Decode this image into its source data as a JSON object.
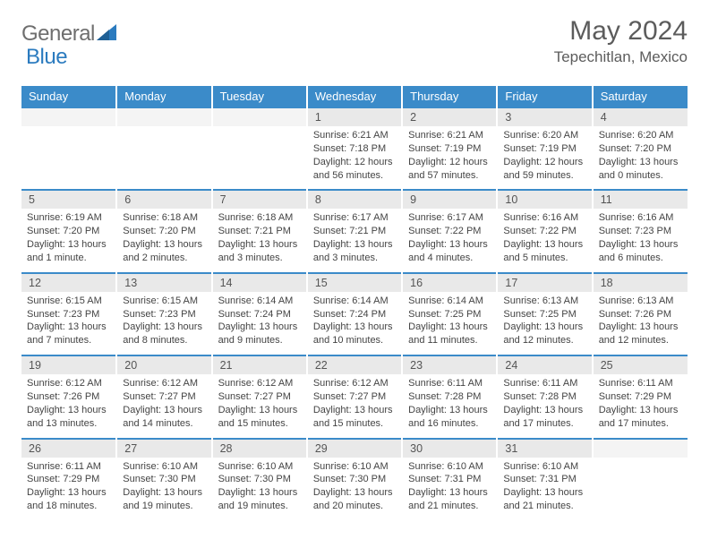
{
  "logo": {
    "text_left": "General",
    "text_right": "Blue"
  },
  "title": "May 2024",
  "subtitle": "Tepechitlan, Mexico",
  "colors": {
    "header_bg": "#3b8bc9",
    "header_text": "#ffffff",
    "daynum_bg": "#e9e9e9",
    "border": "#3b8bc9",
    "logo_gray": "#6e6e6e",
    "logo_blue": "#2b7bbf",
    "body_text": "#444444",
    "title_text": "#5c5c5c"
  },
  "dayNames": [
    "Sunday",
    "Monday",
    "Tuesday",
    "Wednesday",
    "Thursday",
    "Friday",
    "Saturday"
  ],
  "weeks": [
    [
      null,
      null,
      null,
      {
        "n": "1",
        "sr": "6:21 AM",
        "ss": "7:18 PM",
        "dl": "12 hours and 56 minutes."
      },
      {
        "n": "2",
        "sr": "6:21 AM",
        "ss": "7:19 PM",
        "dl": "12 hours and 57 minutes."
      },
      {
        "n": "3",
        "sr": "6:20 AM",
        "ss": "7:19 PM",
        "dl": "12 hours and 59 minutes."
      },
      {
        "n": "4",
        "sr": "6:20 AM",
        "ss": "7:20 PM",
        "dl": "13 hours and 0 minutes."
      }
    ],
    [
      {
        "n": "5",
        "sr": "6:19 AM",
        "ss": "7:20 PM",
        "dl": "13 hours and 1 minute."
      },
      {
        "n": "6",
        "sr": "6:18 AM",
        "ss": "7:20 PM",
        "dl": "13 hours and 2 minutes."
      },
      {
        "n": "7",
        "sr": "6:18 AM",
        "ss": "7:21 PM",
        "dl": "13 hours and 3 minutes."
      },
      {
        "n": "8",
        "sr": "6:17 AM",
        "ss": "7:21 PM",
        "dl": "13 hours and 3 minutes."
      },
      {
        "n": "9",
        "sr": "6:17 AM",
        "ss": "7:22 PM",
        "dl": "13 hours and 4 minutes."
      },
      {
        "n": "10",
        "sr": "6:16 AM",
        "ss": "7:22 PM",
        "dl": "13 hours and 5 minutes."
      },
      {
        "n": "11",
        "sr": "6:16 AM",
        "ss": "7:23 PM",
        "dl": "13 hours and 6 minutes."
      }
    ],
    [
      {
        "n": "12",
        "sr": "6:15 AM",
        "ss": "7:23 PM",
        "dl": "13 hours and 7 minutes."
      },
      {
        "n": "13",
        "sr": "6:15 AM",
        "ss": "7:23 PM",
        "dl": "13 hours and 8 minutes."
      },
      {
        "n": "14",
        "sr": "6:14 AM",
        "ss": "7:24 PM",
        "dl": "13 hours and 9 minutes."
      },
      {
        "n": "15",
        "sr": "6:14 AM",
        "ss": "7:24 PM",
        "dl": "13 hours and 10 minutes."
      },
      {
        "n": "16",
        "sr": "6:14 AM",
        "ss": "7:25 PM",
        "dl": "13 hours and 11 minutes."
      },
      {
        "n": "17",
        "sr": "6:13 AM",
        "ss": "7:25 PM",
        "dl": "13 hours and 12 minutes."
      },
      {
        "n": "18",
        "sr": "6:13 AM",
        "ss": "7:26 PM",
        "dl": "13 hours and 12 minutes."
      }
    ],
    [
      {
        "n": "19",
        "sr": "6:12 AM",
        "ss": "7:26 PM",
        "dl": "13 hours and 13 minutes."
      },
      {
        "n": "20",
        "sr": "6:12 AM",
        "ss": "7:27 PM",
        "dl": "13 hours and 14 minutes."
      },
      {
        "n": "21",
        "sr": "6:12 AM",
        "ss": "7:27 PM",
        "dl": "13 hours and 15 minutes."
      },
      {
        "n": "22",
        "sr": "6:12 AM",
        "ss": "7:27 PM",
        "dl": "13 hours and 15 minutes."
      },
      {
        "n": "23",
        "sr": "6:11 AM",
        "ss": "7:28 PM",
        "dl": "13 hours and 16 minutes."
      },
      {
        "n": "24",
        "sr": "6:11 AM",
        "ss": "7:28 PM",
        "dl": "13 hours and 17 minutes."
      },
      {
        "n": "25",
        "sr": "6:11 AM",
        "ss": "7:29 PM",
        "dl": "13 hours and 17 minutes."
      }
    ],
    [
      {
        "n": "26",
        "sr": "6:11 AM",
        "ss": "7:29 PM",
        "dl": "13 hours and 18 minutes."
      },
      {
        "n": "27",
        "sr": "6:10 AM",
        "ss": "7:30 PM",
        "dl": "13 hours and 19 minutes."
      },
      {
        "n": "28",
        "sr": "6:10 AM",
        "ss": "7:30 PM",
        "dl": "13 hours and 19 minutes."
      },
      {
        "n": "29",
        "sr": "6:10 AM",
        "ss": "7:30 PM",
        "dl": "13 hours and 20 minutes."
      },
      {
        "n": "30",
        "sr": "6:10 AM",
        "ss": "7:31 PM",
        "dl": "13 hours and 21 minutes."
      },
      {
        "n": "31",
        "sr": "6:10 AM",
        "ss": "7:31 PM",
        "dl": "13 hours and 21 minutes."
      },
      null
    ]
  ],
  "labels": {
    "sunrise": "Sunrise:",
    "sunset": "Sunset:",
    "daylight": "Daylight:"
  }
}
